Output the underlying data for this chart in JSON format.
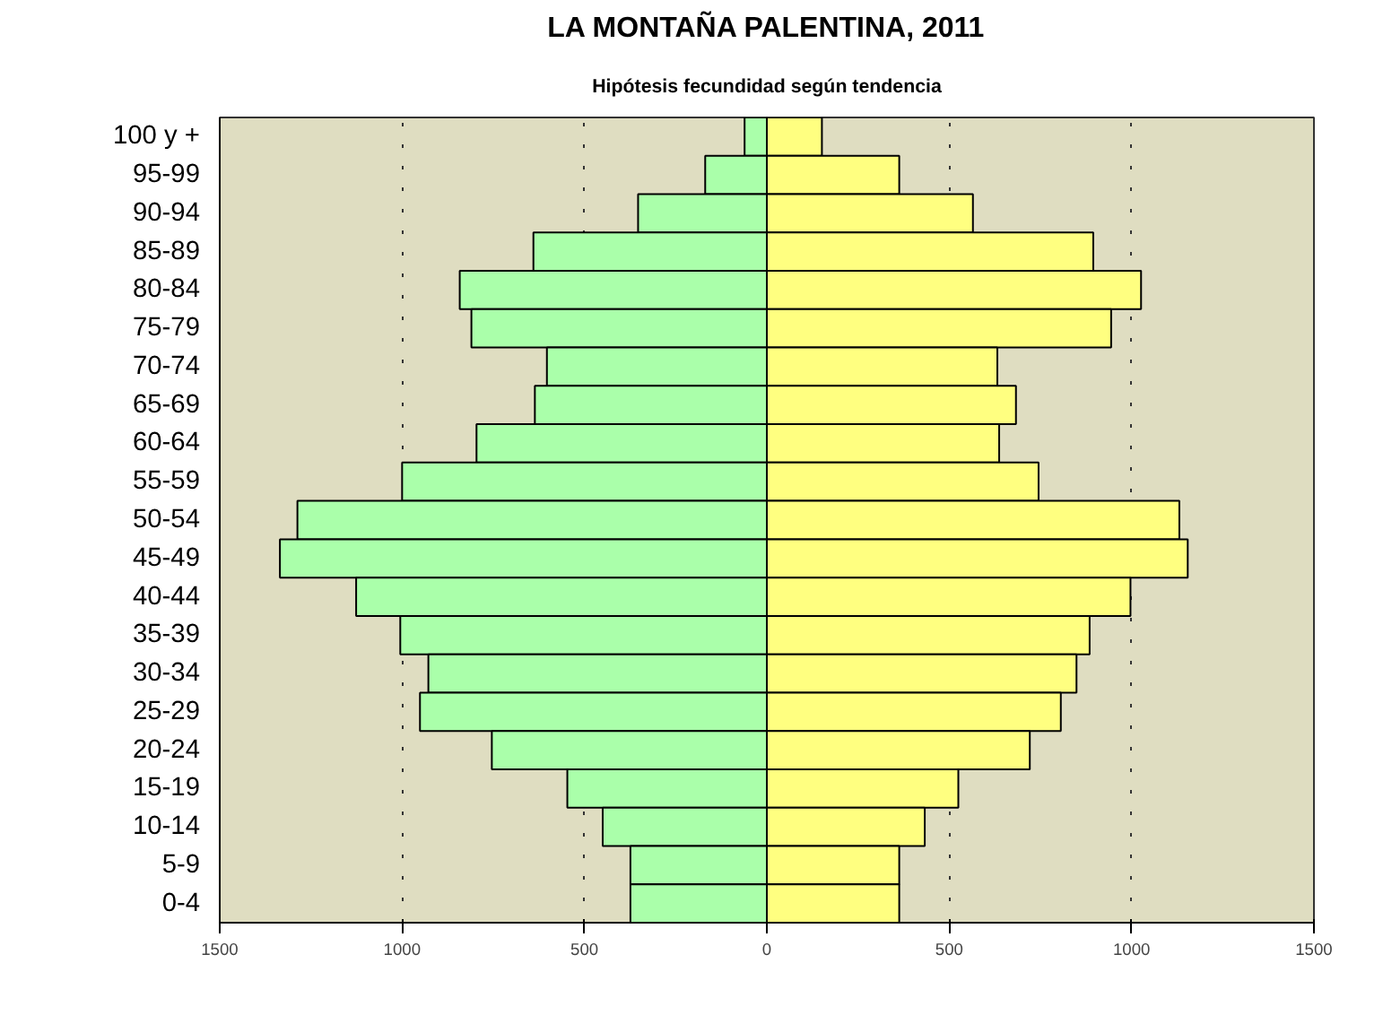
{
  "chart_data": {
    "type": "bar",
    "orientation": "horizontal",
    "stacked": true,
    "title": "LA MONTAÑA PALENTINA, 2011",
    "subtitle": "Hipótesis fecundidad según tendencia",
    "categories": [
      "100 y +",
      "95-99",
      "90-94",
      "85-89",
      "80-84",
      "75-79",
      "70-74",
      "65-69",
      "60-64",
      "55-59",
      "50-54",
      "45-49",
      "40-44",
      "35-39",
      "30-34",
      "25-29",
      "20-24",
      "15-19",
      "10-14",
      "5-9",
      "0-4"
    ],
    "series": [
      {
        "color": "#aaffaa",
        "values": [
          -61,
          -169,
          -353,
          -640,
          -842,
          -810,
          -603,
          -636,
          -796,
          -1000,
          -1287,
          -1335,
          -1126,
          -1005,
          -928,
          -951,
          -754,
          -547,
          -450,
          -374,
          -374
        ]
      },
      {
        "color": "#ffff80",
        "values": [
          151,
          363,
          565,
          895,
          1026,
          944,
          632,
          683,
          637,
          745,
          1131,
          1154,
          997,
          885,
          849,
          806,
          721,
          525,
          433,
          363,
          363
        ]
      }
    ],
    "xlim": [
      -1500,
      1500
    ],
    "xticks": [
      {
        "value": -1500,
        "label": "1500"
      },
      {
        "value": -1000,
        "label": "1000"
      },
      {
        "value": -500,
        "label": "500"
      },
      0,
      500,
      1000,
      1500
    ],
    "grid": "x"
  }
}
